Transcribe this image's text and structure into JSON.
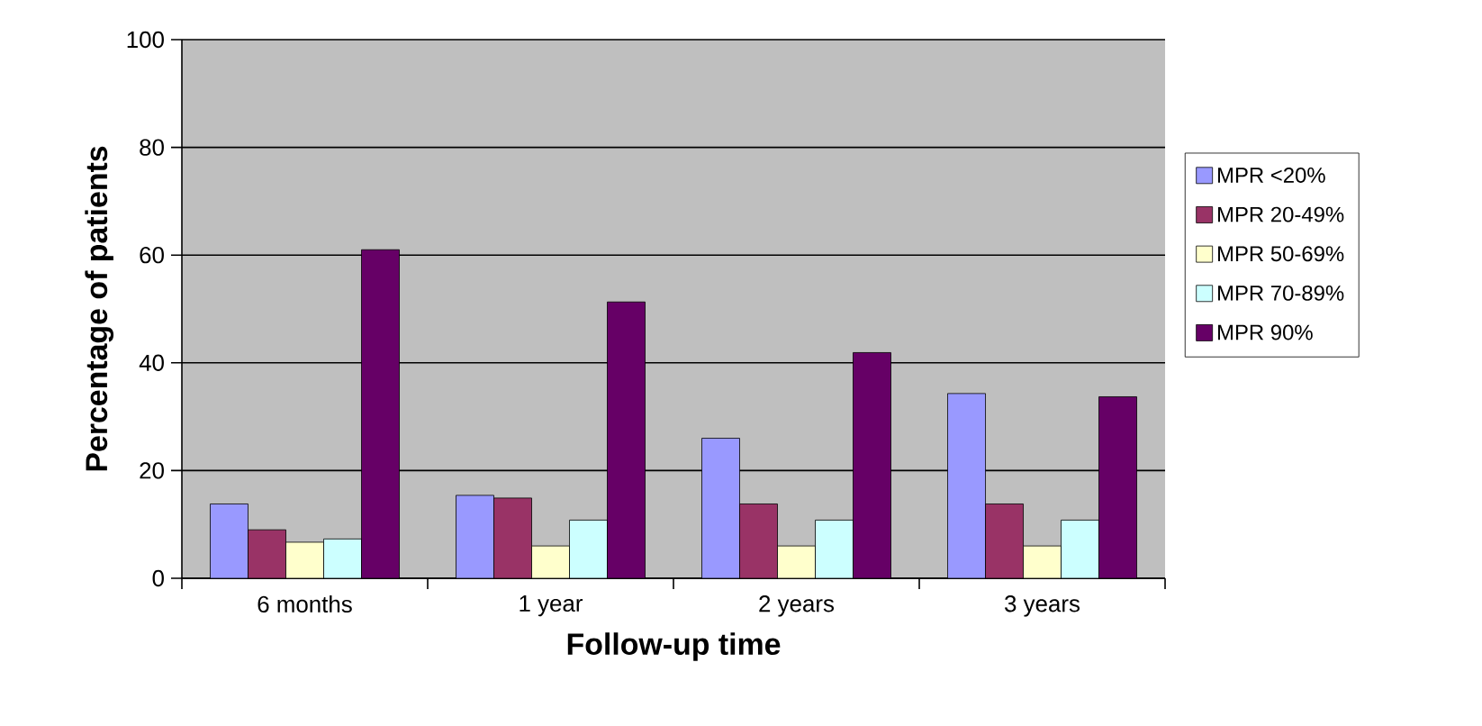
{
  "chart_data": {
    "type": "bar",
    "xlabel": "Follow-up time",
    "ylabel": "Percentage of patients",
    "categories": [
      "6 months",
      "1 year",
      "2 years",
      "3 years"
    ],
    "series": [
      {
        "name": "MPR <20%",
        "color": "#9999ff",
        "values": [
          13.8,
          15.4,
          26.0,
          34.3
        ]
      },
      {
        "name": "MPR 20-49%",
        "color": "#993366",
        "values": [
          9.0,
          14.9,
          13.8,
          13.8
        ]
      },
      {
        "name": "MPR 50-69%",
        "color": "#ffffcc",
        "values": [
          6.7,
          6.0,
          6.0,
          6.0
        ]
      },
      {
        "name": "MPR 70-89%",
        "color": "#ccffff",
        "values": [
          7.3,
          10.8,
          10.8,
          10.8
        ]
      },
      {
        "name": "MPR  90%",
        "color": "#660066",
        "values": [
          61.0,
          51.3,
          41.9,
          33.7
        ]
      }
    ],
    "ylim": [
      0,
      100
    ],
    "yticks": [
      0,
      20,
      40,
      60,
      80,
      100
    ],
    "grid": "y",
    "legend": "right"
  }
}
